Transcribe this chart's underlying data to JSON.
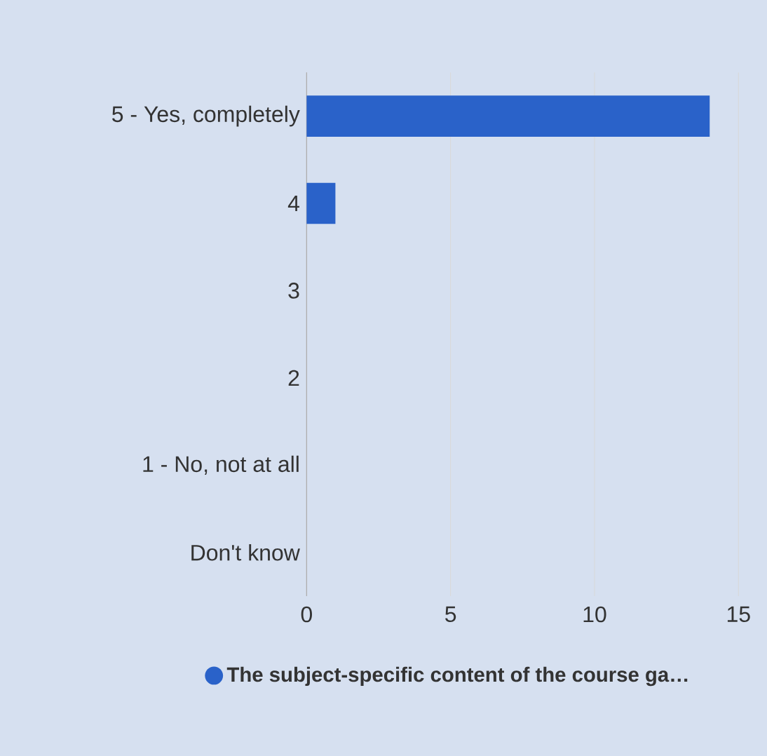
{
  "chart_data": {
    "type": "bar",
    "orientation": "horizontal",
    "categories": [
      "5 - Yes, completely",
      "4",
      "3",
      "2",
      "1 - No, not at all",
      "Don't know"
    ],
    "series": [
      {
        "name": "The subject-specific content of the course ga…",
        "color": "#2a62c9",
        "values": [
          14,
          1,
          0,
          0,
          0,
          0
        ]
      }
    ],
    "xlim": [
      0,
      15
    ],
    "xticks": [
      0,
      5,
      10,
      15
    ],
    "grid": "x",
    "legend": "bottom"
  }
}
